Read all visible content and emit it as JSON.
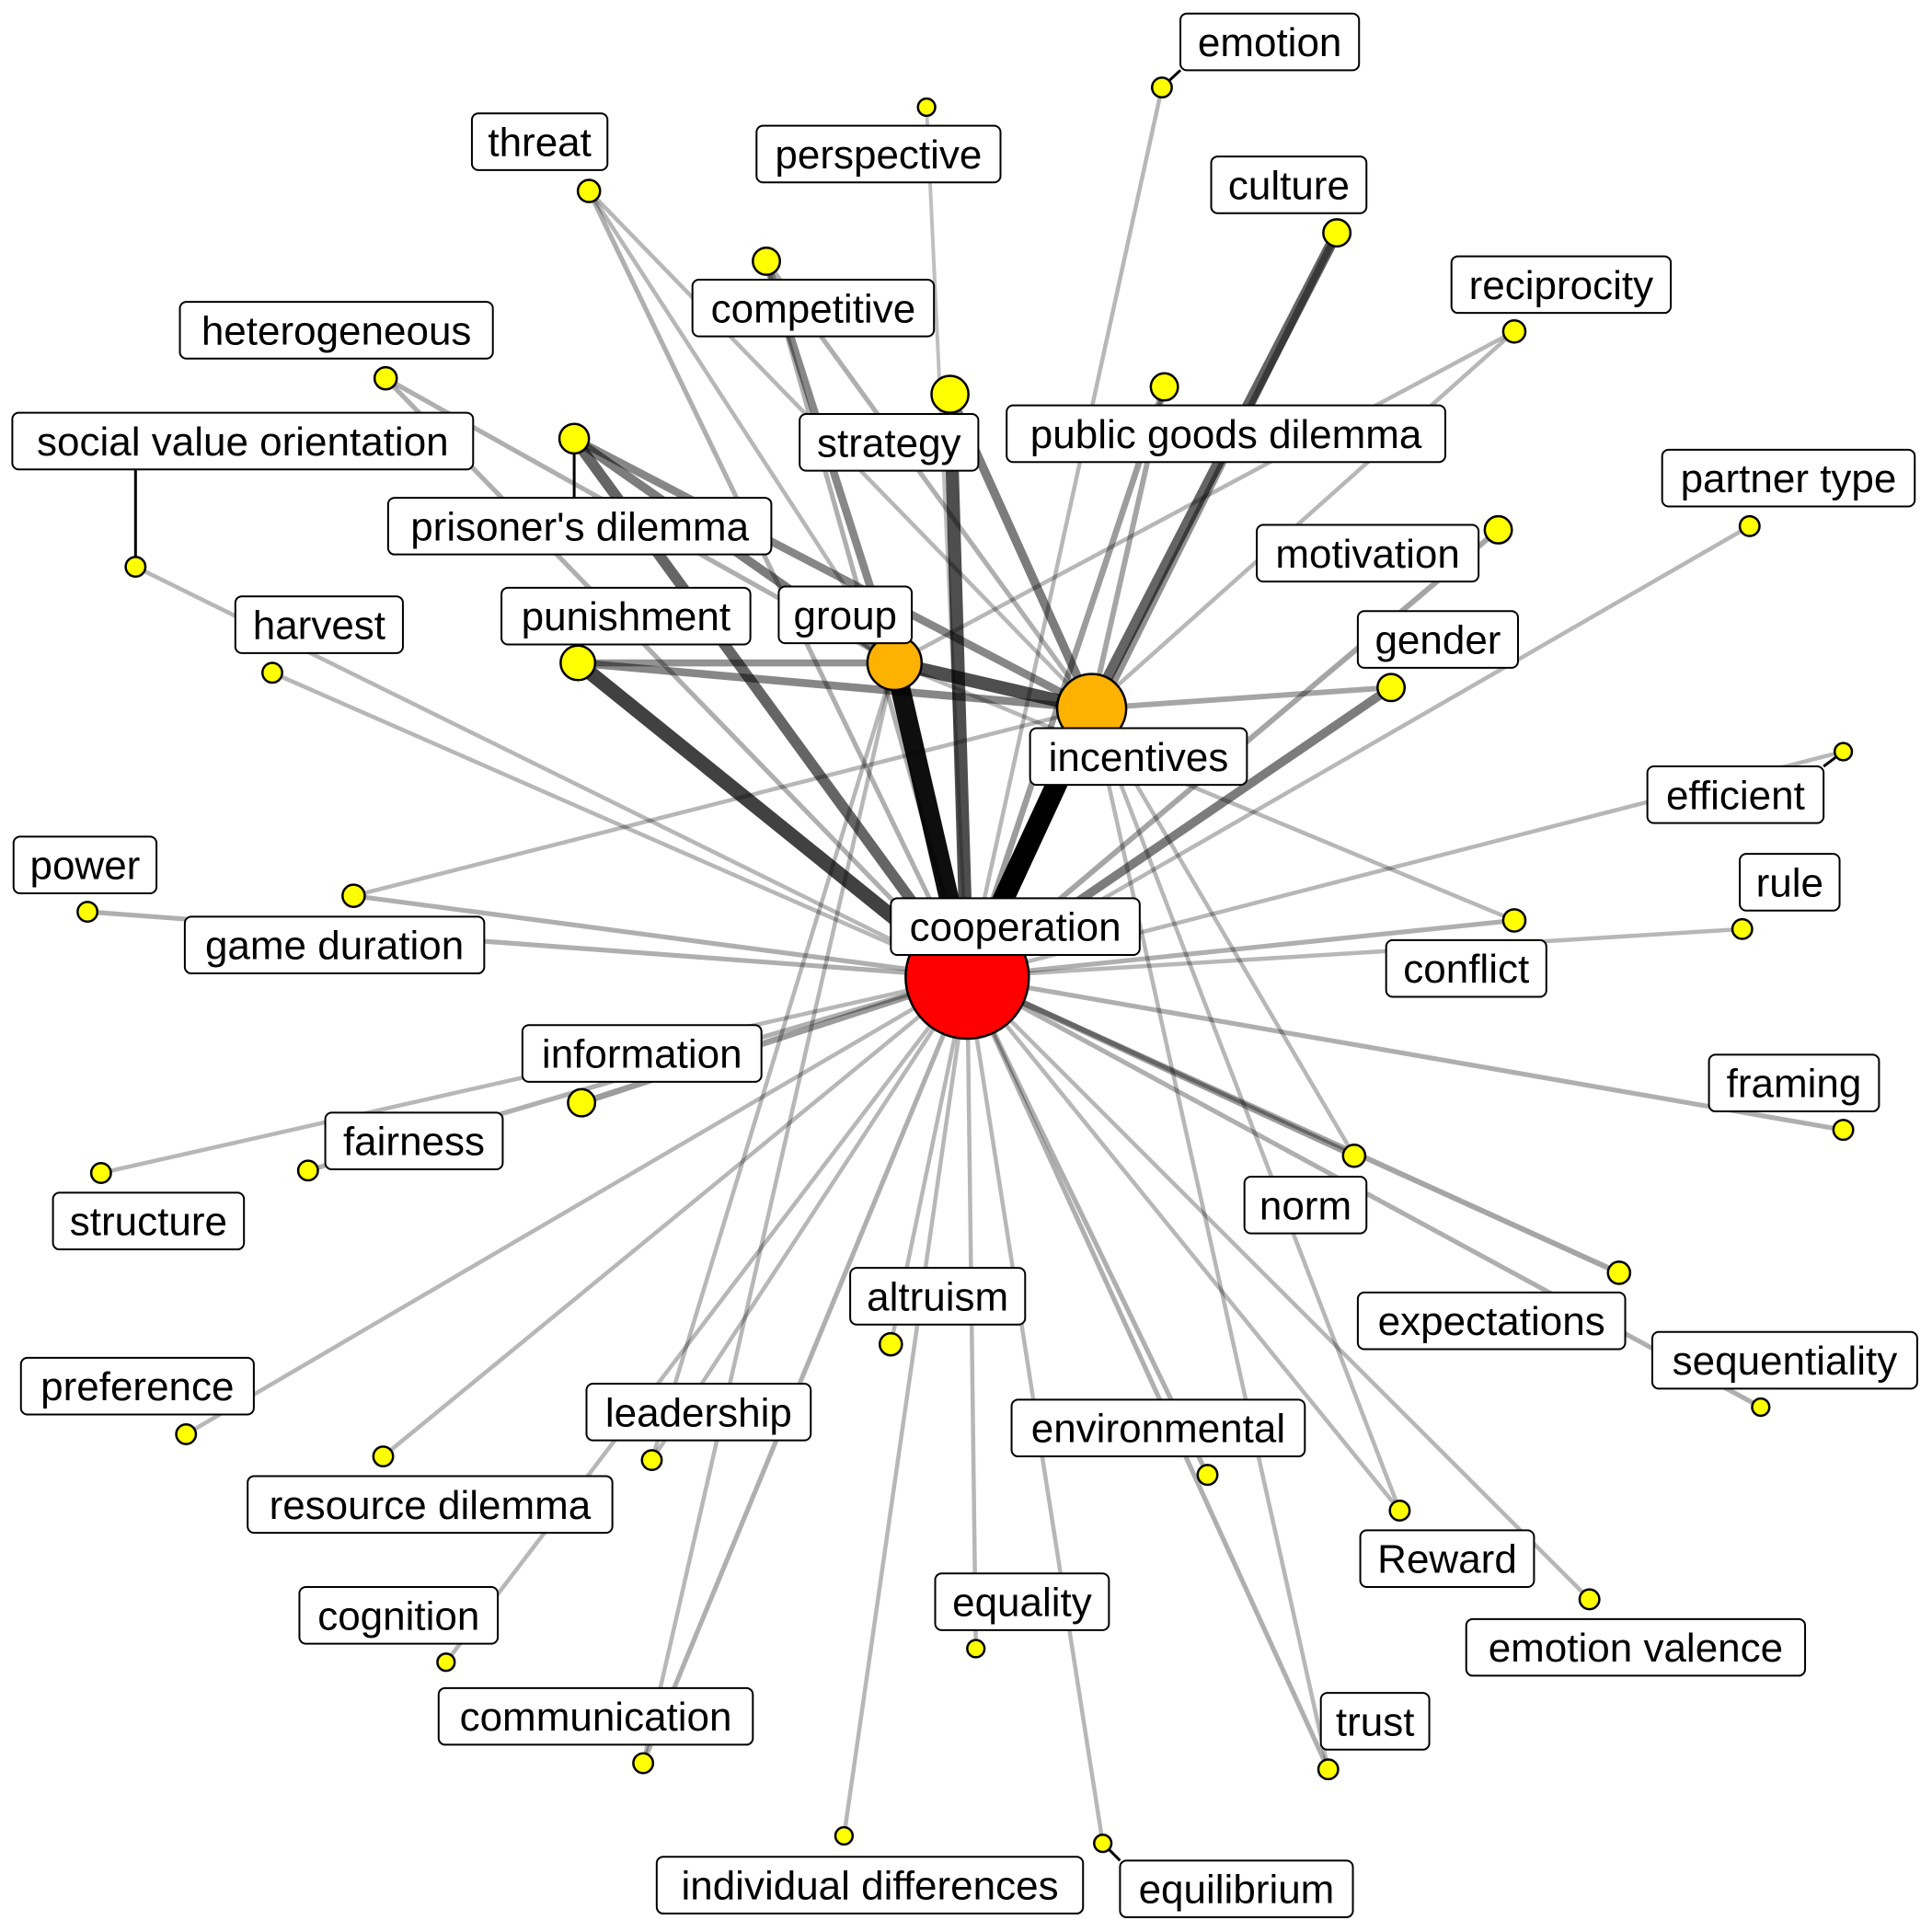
{
  "colors": {
    "hub": "#ff0000",
    "secondary": "#fdb100",
    "leaf": "#ffff00",
    "edge": "#000000",
    "label_border": "#000000",
    "label_fill": "#ffffff"
  },
  "diagram": {
    "type": "network",
    "nodes": [
      {
        "id": "cooperation",
        "label": "cooperation",
        "level": "hub"
      },
      {
        "id": "incentives",
        "label": "incentives",
        "level": "secondary"
      },
      {
        "id": "group",
        "label": "group",
        "level": "secondary"
      },
      {
        "id": "punishment",
        "label": "punishment",
        "level": "leaf"
      },
      {
        "id": "strategy",
        "label": "strategy",
        "level": "leaf"
      },
      {
        "id": "prisoners_dilemma",
        "label": "prisoner's dilemma",
        "level": "leaf"
      },
      {
        "id": "public_goods_dilemma",
        "label": "public goods dilemma",
        "level": "leaf"
      },
      {
        "id": "competitive",
        "label": "competitive",
        "level": "leaf"
      },
      {
        "id": "gender",
        "label": "gender",
        "level": "leaf"
      },
      {
        "id": "culture",
        "label": "culture",
        "level": "leaf"
      },
      {
        "id": "information",
        "label": "information",
        "level": "leaf"
      },
      {
        "id": "motivation",
        "label": "motivation",
        "level": "leaf"
      },
      {
        "id": "threat",
        "label": "threat",
        "level": "leaf"
      },
      {
        "id": "heterogeneous",
        "label": "heterogeneous",
        "level": "leaf"
      },
      {
        "id": "perspective",
        "label": "perspective",
        "level": "leaf"
      },
      {
        "id": "emotion",
        "label": "emotion",
        "level": "leaf"
      },
      {
        "id": "reciprocity",
        "label": "reciprocity",
        "level": "leaf"
      },
      {
        "id": "partner_type",
        "label": "partner type",
        "level": "leaf"
      },
      {
        "id": "social_value_orientation",
        "label": "social value orientation",
        "level": "leaf"
      },
      {
        "id": "harvest",
        "label": "harvest",
        "level": "leaf"
      },
      {
        "id": "power",
        "label": "power",
        "level": "leaf"
      },
      {
        "id": "game_duration",
        "label": "game duration",
        "level": "leaf"
      },
      {
        "id": "efficient",
        "label": "efficient",
        "level": "leaf"
      },
      {
        "id": "rule",
        "label": "rule",
        "level": "leaf"
      },
      {
        "id": "conflict",
        "label": "conflict",
        "level": "leaf"
      },
      {
        "id": "framing",
        "label": "framing",
        "level": "leaf"
      },
      {
        "id": "fairness",
        "label": "fairness",
        "level": "leaf"
      },
      {
        "id": "structure",
        "label": "structure",
        "level": "leaf"
      },
      {
        "id": "norm",
        "label": "norm",
        "level": "leaf"
      },
      {
        "id": "expectations",
        "label": "expectations",
        "level": "leaf"
      },
      {
        "id": "sequentiality",
        "label": "sequentiality",
        "level": "leaf"
      },
      {
        "id": "altruism",
        "label": "altruism",
        "level": "leaf"
      },
      {
        "id": "preference",
        "label": "preference",
        "level": "leaf"
      },
      {
        "id": "leadership",
        "label": "leadership",
        "level": "leaf"
      },
      {
        "id": "resource_dilemma",
        "label": "resource dilemma",
        "level": "leaf"
      },
      {
        "id": "environmental",
        "label": "environmental",
        "level": "leaf"
      },
      {
        "id": "reward",
        "label": "Reward",
        "level": "leaf"
      },
      {
        "id": "emotion_valence",
        "label": "emotion valence",
        "level": "leaf"
      },
      {
        "id": "cognition",
        "label": "cognition",
        "level": "leaf"
      },
      {
        "id": "equality",
        "label": "equality",
        "level": "leaf"
      },
      {
        "id": "communication",
        "label": "communication",
        "level": "leaf"
      },
      {
        "id": "trust",
        "label": "trust",
        "level": "leaf"
      },
      {
        "id": "individual_differences",
        "label": "individual differences",
        "level": "leaf"
      },
      {
        "id": "equilibrium",
        "label": "equilibrium",
        "level": "leaf"
      }
    ],
    "edges": [
      {
        "source": "cooperation",
        "target": "incentives",
        "weight": 1.0
      },
      {
        "source": "cooperation",
        "target": "group",
        "weight": 0.95
      },
      {
        "source": "cooperation",
        "target": "punishment",
        "weight": 0.75
      },
      {
        "source": "group",
        "target": "incentives",
        "weight": 0.7
      },
      {
        "source": "cooperation",
        "target": "strategy",
        "weight": 0.7
      },
      {
        "source": "cooperation",
        "target": "prisoners_dilemma",
        "weight": 0.6
      },
      {
        "source": "cooperation",
        "target": "gender",
        "weight": 0.5
      },
      {
        "source": "incentives",
        "target": "culture",
        "weight": 0.6
      },
      {
        "source": "incentives",
        "target": "strategy",
        "weight": 0.5
      },
      {
        "source": "punishment",
        "target": "incentives",
        "weight": 0.45
      },
      {
        "source": "punishment",
        "target": "group",
        "weight": 0.4
      },
      {
        "source": "prisoners_dilemma",
        "target": "group",
        "weight": 0.5
      },
      {
        "source": "prisoners_dilemma",
        "target": "incentives",
        "weight": 0.45
      },
      {
        "source": "competitive",
        "target": "group",
        "weight": 0.45
      },
      {
        "source": "cooperation",
        "target": "culture",
        "weight": 0.4
      },
      {
        "source": "cooperation",
        "target": "information",
        "weight": 0.35
      },
      {
        "source": "gender",
        "target": "incentives",
        "weight": 0.3
      },
      {
        "source": "cooperation",
        "target": "public_goods_dilemma",
        "weight": 0.35
      },
      {
        "source": "incentives",
        "target": "public_goods_dilemma",
        "weight": 0.3
      },
      {
        "source": "cooperation",
        "target": "motivation",
        "weight": 0.3
      },
      {
        "source": "cooperation",
        "target": "threat",
        "weight": 0.25
      },
      {
        "source": "threat",
        "target": "incentives",
        "weight": 0.2
      },
      {
        "source": "threat",
        "target": "group",
        "weight": 0.2
      },
      {
        "source": "heterogeneous",
        "target": "cooperation",
        "weight": 0.25
      },
      {
        "source": "heterogeneous",
        "target": "group",
        "weight": 0.25
      },
      {
        "source": "cooperation",
        "target": "competitive",
        "weight": 0.25
      },
      {
        "source": "competitive",
        "target": "incentives",
        "weight": 0.25
      },
      {
        "source": "cooperation",
        "target": "perspective",
        "weight": 0.15
      },
      {
        "source": "cooperation",
        "target": "emotion",
        "weight": 0.2
      },
      {
        "source": "incentives",
        "target": "reciprocity",
        "weight": 0.2
      },
      {
        "source": "group",
        "target": "reciprocity",
        "weight": 0.2
      },
      {
        "source": "cooperation",
        "target": "partner_type",
        "weight": 0.2
      },
      {
        "source": "cooperation",
        "target": "social_value_orientation",
        "weight": 0.2
      },
      {
        "source": "cooperation",
        "target": "harvest",
        "weight": 0.2
      },
      {
        "source": "cooperation",
        "target": "power",
        "weight": 0.25
      },
      {
        "source": "cooperation",
        "target": "game_duration",
        "weight": 0.25
      },
      {
        "source": "game_duration",
        "target": "incentives",
        "weight": 0.2
      },
      {
        "source": "cooperation",
        "target": "efficient",
        "weight": 0.2
      },
      {
        "source": "cooperation",
        "target": "rule",
        "weight": 0.2
      },
      {
        "source": "cooperation",
        "target": "conflict",
        "weight": 0.25
      },
      {
        "source": "group",
        "target": "conflict",
        "weight": 0.2
      },
      {
        "source": "cooperation",
        "target": "framing",
        "weight": 0.25
      },
      {
        "source": "cooperation",
        "target": "fairness",
        "weight": 0.25
      },
      {
        "source": "cooperation",
        "target": "structure",
        "weight": 0.2
      },
      {
        "source": "cooperation",
        "target": "norm",
        "weight": 0.35
      },
      {
        "source": "cooperation",
        "target": "expectations",
        "weight": 0.3
      },
      {
        "source": "cooperation",
        "target": "sequentiality",
        "weight": 0.25
      },
      {
        "source": "cooperation",
        "target": "altruism",
        "weight": 0.2
      },
      {
        "source": "cooperation",
        "target": "preference",
        "weight": 0.2
      },
      {
        "source": "cooperation",
        "target": "leadership",
        "weight": 0.2
      },
      {
        "source": "cooperation",
        "target": "resource_dilemma",
        "weight": 0.2
      },
      {
        "source": "cooperation",
        "target": "environmental",
        "weight": 0.25
      },
      {
        "source": "cooperation",
        "target": "reward",
        "weight": 0.2
      },
      {
        "source": "cooperation",
        "target": "emotion_valence",
        "weight": 0.2
      },
      {
        "source": "cooperation",
        "target": "cognition",
        "weight": 0.2
      },
      {
        "source": "cooperation",
        "target": "equality",
        "weight": 0.2
      },
      {
        "source": "cooperation",
        "target": "communication",
        "weight": 0.25
      },
      {
        "source": "cooperation",
        "target": "trust",
        "weight": 0.25
      },
      {
        "source": "cooperation",
        "target": "individual_differences",
        "weight": 0.2
      },
      {
        "source": "cooperation",
        "target": "equilibrium",
        "weight": 0.2
      },
      {
        "source": "incentives",
        "target": "norm",
        "weight": 0.2
      },
      {
        "source": "incentives",
        "target": "reward",
        "weight": 0.2
      },
      {
        "source": "incentives",
        "target": "trust",
        "weight": 0.2
      },
      {
        "source": "group",
        "target": "leadership",
        "weight": 0.2
      },
      {
        "source": "group",
        "target": "communication",
        "weight": 0.2
      }
    ]
  }
}
